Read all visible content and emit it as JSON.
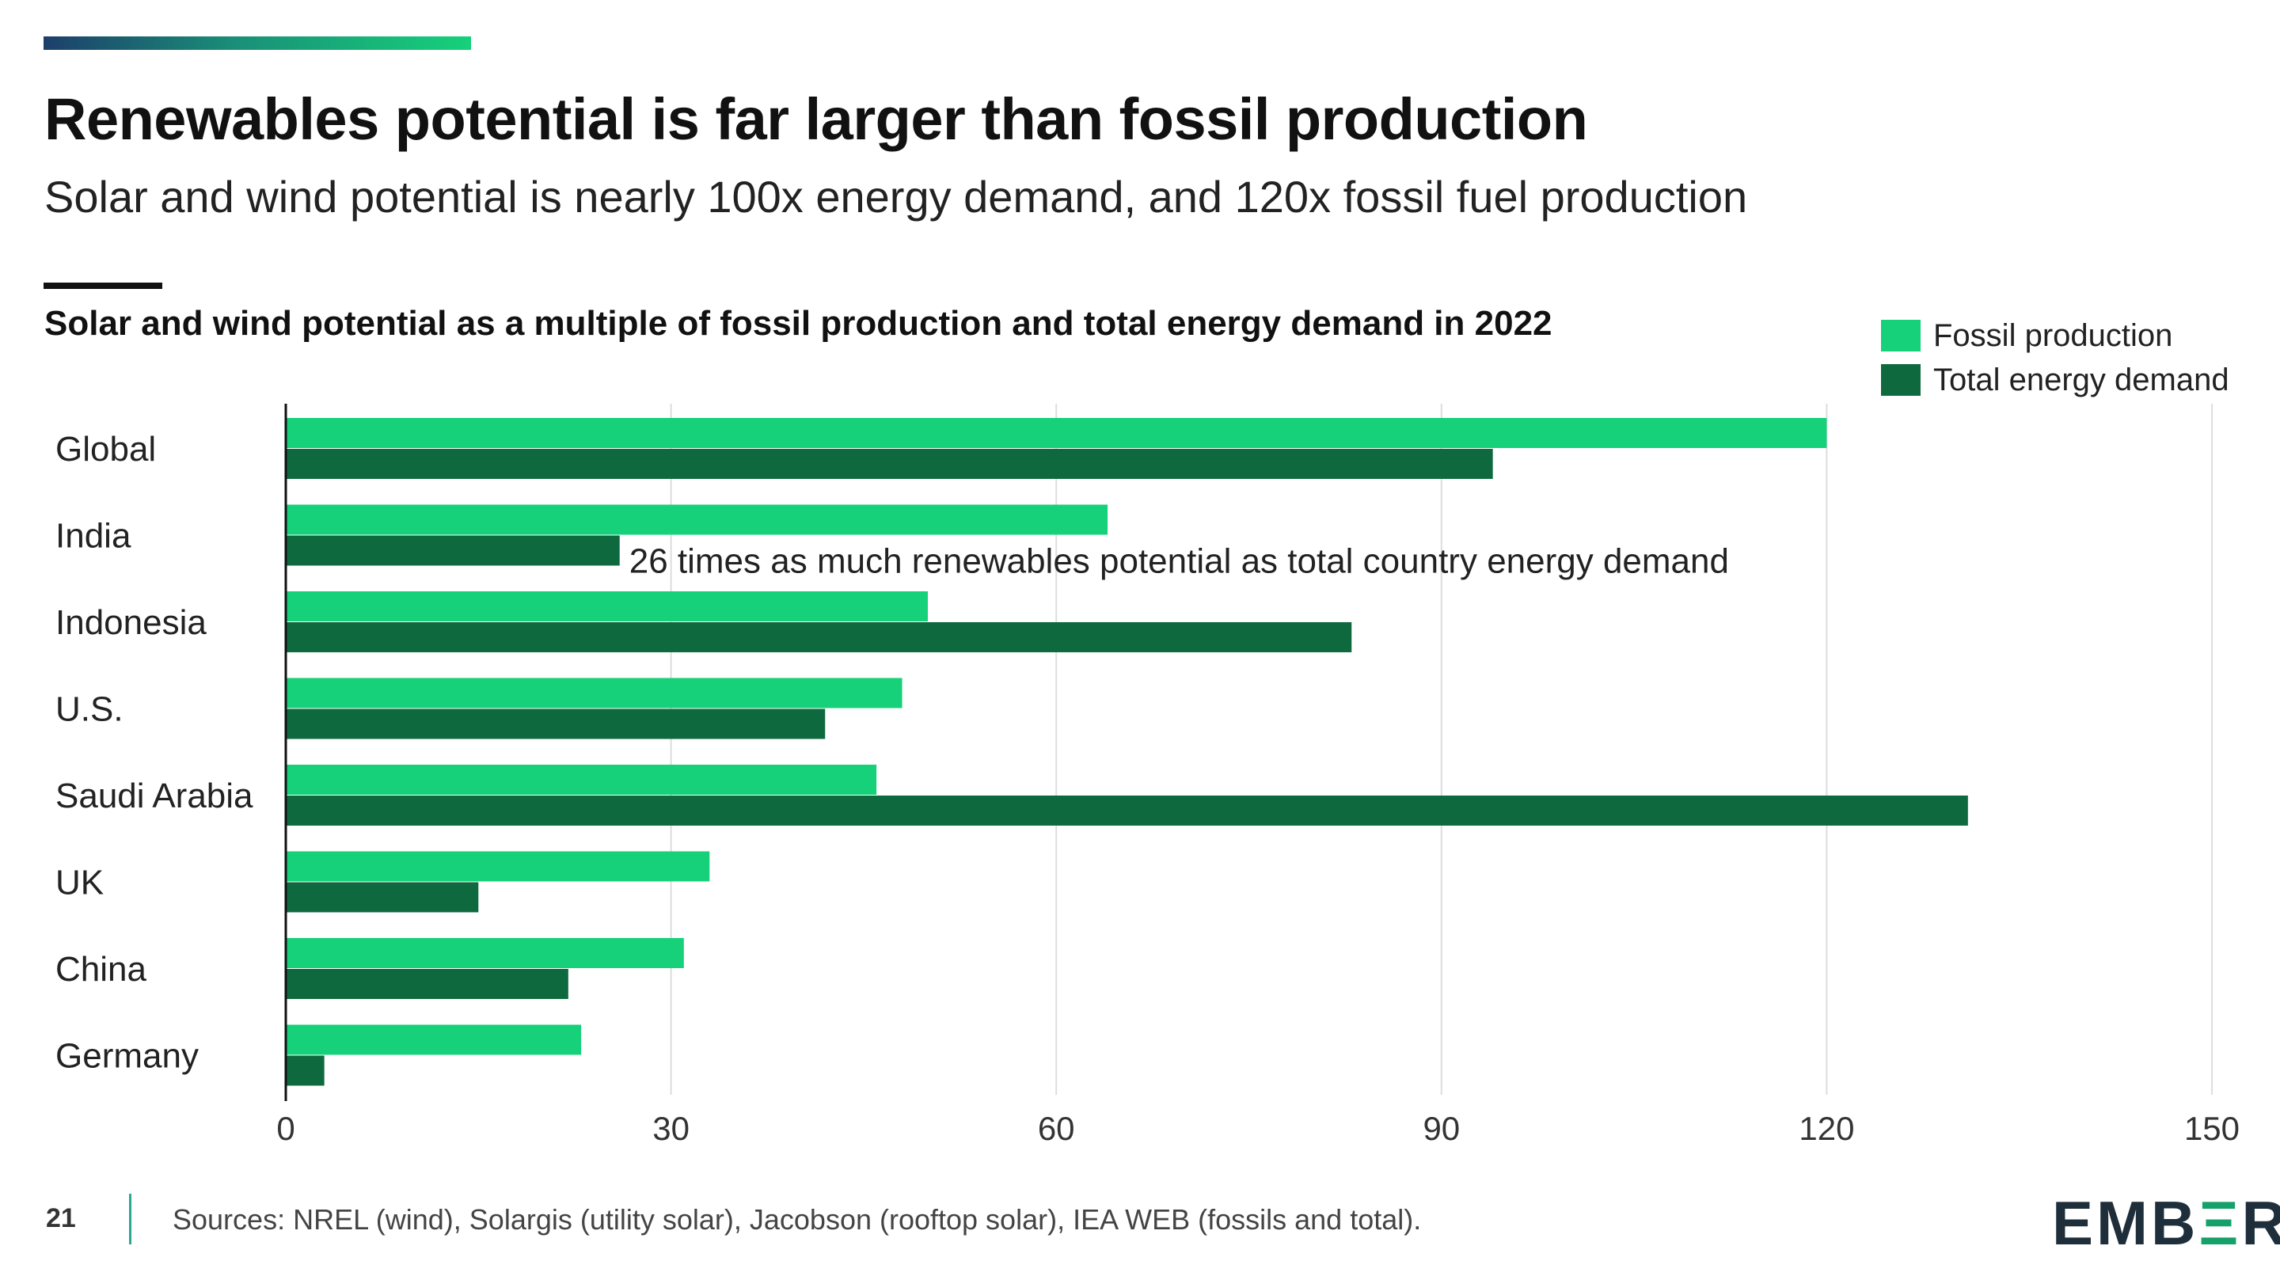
{
  "header": {
    "title": "Renewables potential is far larger than fossil production",
    "subtitle": "Solar and wind potential is nearly 100x energy demand, and 120x fossil fuel production"
  },
  "footer": {
    "page_number": "21",
    "sources": "Sources:  NREL (wind), Solargis (utility solar), Jacobson (rooftop solar), IEA WEB (fossils and total).",
    "logo_parts": [
      "EMB",
      "Ξ",
      "R"
    ]
  },
  "colors": {
    "fossil": "#16d17a",
    "demand": "#0e6a3e",
    "grid": "#dddddd",
    "axis": "#111111"
  },
  "chart_data": {
    "type": "bar",
    "orientation": "horizontal",
    "title": "Solar and wind potential as a multiple of fossil production and total energy demand in 2022",
    "categories": [
      "Global",
      "India",
      "Indonesia",
      "U.S.",
      "Saudi Arabia",
      "UK",
      "China",
      "Germany"
    ],
    "series": [
      {
        "name": "Fossil production",
        "values": [
          120,
          64,
          50,
          48,
          46,
          33,
          31,
          23
        ]
      },
      {
        "name": "Total energy demand",
        "values": [
          94,
          26,
          83,
          42,
          131,
          15,
          22,
          3
        ]
      }
    ],
    "xlim": [
      0,
      150
    ],
    "xticks": [
      "0",
      "30",
      "60",
      "90",
      "120",
      "150"
    ],
    "grid": true,
    "legend_position": "top-right",
    "annotation": {
      "category": "India",
      "series": "Total energy demand",
      "value_text": "26",
      "text": " times as much renewables potential as total country energy demand"
    }
  }
}
